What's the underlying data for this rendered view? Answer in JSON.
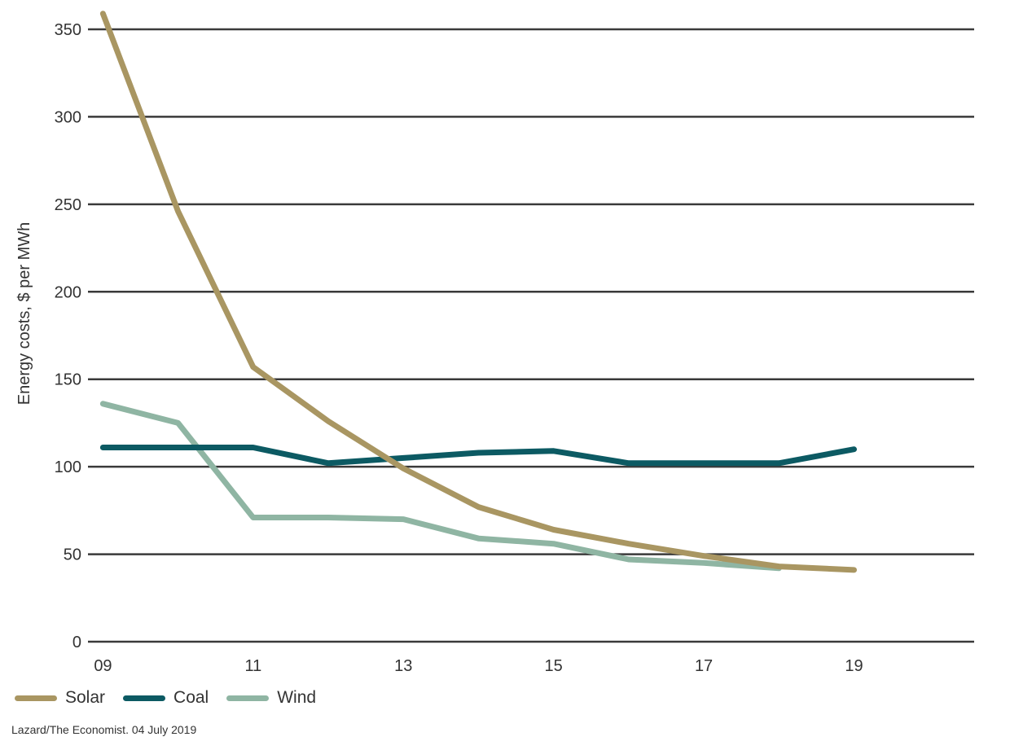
{
  "chart_data": {
    "type": "line",
    "ylabel": "Energy costs, $ per MWh",
    "xlabel": "",
    "x": [
      9,
      10,
      11,
      12,
      13,
      14,
      15,
      16,
      17,
      18,
      19
    ],
    "x_ticks": [
      9,
      11,
      13,
      15,
      17,
      19
    ],
    "x_tick_labels": [
      "09",
      "11",
      "13",
      "15",
      "17",
      "19"
    ],
    "xlim": [
      8.8,
      20.6
    ],
    "y_ticks": [
      0,
      50,
      100,
      150,
      200,
      250,
      300,
      350
    ],
    "ylim": [
      0,
      350
    ],
    "grid": true,
    "legend_position": "bottom-left",
    "series": [
      {
        "name": "Solar",
        "color": "#a99662",
        "values": [
          359,
          246,
          157,
          126,
          99,
          77,
          64,
          56,
          49,
          43,
          41
        ]
      },
      {
        "name": "Coal",
        "color": "#0c5a63",
        "values": [
          111,
          111,
          111,
          102,
          105,
          108,
          109,
          102,
          102,
          102,
          110
        ]
      },
      {
        "name": "Wind",
        "color": "#8fb5a3",
        "values": [
          136,
          125,
          71,
          71,
          70,
          59,
          56,
          47,
          45,
          42,
          null
        ]
      }
    ],
    "source": "Lazard/The Economist. 04 July 2019"
  }
}
